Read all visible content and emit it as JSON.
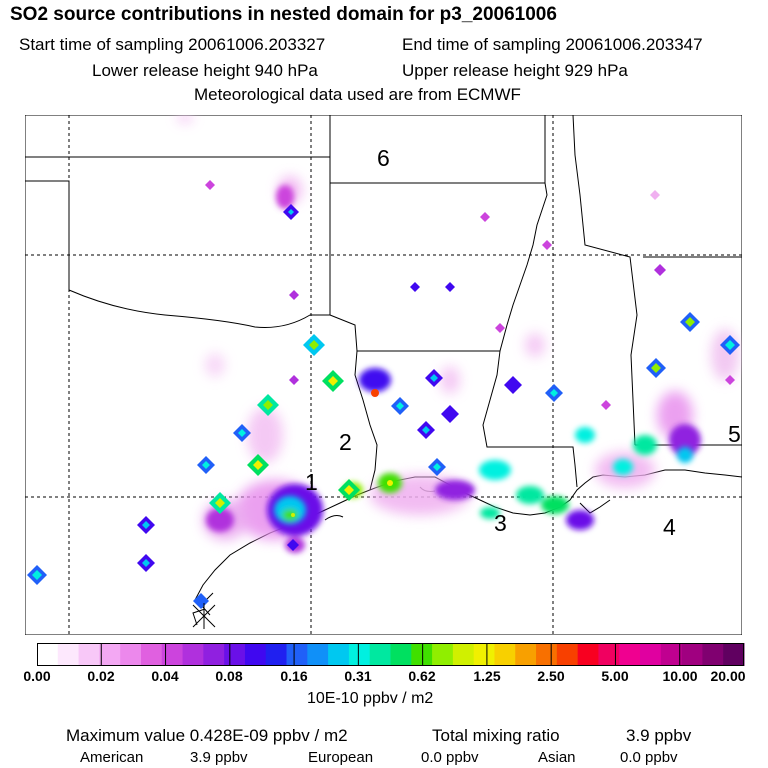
{
  "header": {
    "title": "SO2 source contributions in nested domain for p3_20061006",
    "start_label": "Start time of sampling 20061006.203327",
    "end_label": "End time of sampling 20061006.203347",
    "lower_label": "Lower release height  940 hPa",
    "upper_label": "Upper release height  929 hPa",
    "met_label": "Meteorological data used are from ECMWF"
  },
  "map": {
    "region_labels": [
      "1",
      "2",
      "3",
      "4",
      "5",
      "6"
    ]
  },
  "colorbar": {
    "colors": [
      "#ffffff",
      "#fde8fd",
      "#f8c8f8",
      "#f3a8f3",
      "#ec88ec",
      "#e060e0",
      "#cc44dd",
      "#b030dd",
      "#9020e0",
      "#6a10e8",
      "#4008f0",
      "#2020f0",
      "#2060f8",
      "#1090f8",
      "#00c8f0",
      "#00f0e0",
      "#00e8a0",
      "#00e060",
      "#40e000",
      "#90ee00",
      "#d0f000",
      "#f0f000",
      "#f8d000",
      "#f8a000",
      "#f87000",
      "#f84000",
      "#f80020",
      "#f00060",
      "#f00090",
      "#e000a0",
      "#c00090",
      "#a00080",
      "#800070",
      "#600060"
    ],
    "tick_labels": [
      "0.00",
      "0.02",
      "0.04",
      "0.08",
      "0.16",
      "0.31",
      "0.62",
      "1.25",
      "2.50",
      "5.00",
      "10.00",
      "20.00"
    ],
    "units": "10E-10 ppbv / m2"
  },
  "footer": {
    "max_label": "Maximum value  0.428E-09 ppbv / m2",
    "total_label": "Total mixing ratio",
    "total_value": "3.9 ppbv",
    "american_label": "American",
    "american_value": "3.9 ppbv",
    "european_label": "European",
    "european_value": "0.0 ppbv",
    "asian_label": "Asian",
    "asian_value": "0.0 ppbv"
  }
}
